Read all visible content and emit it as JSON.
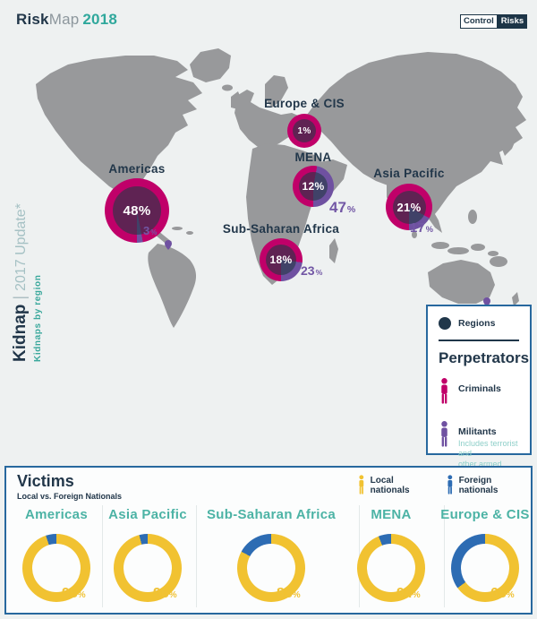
{
  "header": {
    "brand_bold": "Risk",
    "brand_light": "Map",
    "brand_year": "2018",
    "logo_left": "Control",
    "logo_right": "Risks"
  },
  "sidebar": {
    "title_bold": "Kidnap",
    "title_sep": "|",
    "title_rest": "2017 Update*",
    "subtitle": "Kidnaps by region"
  },
  "map": {
    "regions": [
      {
        "id": "americas",
        "label": "Americas",
        "share": "48%",
        "militants": "3"
      },
      {
        "id": "europe_cis",
        "label": "Europe & CIS",
        "share": "1%",
        "militants": null
      },
      {
        "id": "mena",
        "label": "MENA",
        "share": "12%",
        "militants": "47"
      },
      {
        "id": "asia_pacific",
        "label": "Asia Pacific",
        "share": "21%",
        "militants": "17"
      },
      {
        "id": "ssa",
        "label": "Sub-Saharan Africa",
        "share": "18%",
        "militants": "23"
      }
    ]
  },
  "legend": {
    "regions_label": "Regions",
    "title": "Perpetrators",
    "criminals_label": "Criminals",
    "militants_label": "Militants",
    "militants_note_1": "Includes terrorist and",
    "militants_note_2": "other armed groups"
  },
  "victims": {
    "title": "Victims",
    "subtitle": "Local vs. Foreign Nationals",
    "legend": [
      {
        "id": "local",
        "label": "Local nationals",
        "color": "#f1c231"
      },
      {
        "id": "foreign",
        "label": "Foreign nationals",
        "color": "#2d6cb3"
      }
    ],
    "charts": [
      {
        "label": "Americas",
        "local_pct": 95
      },
      {
        "label": "Asia Pacific",
        "local_pct": 96
      },
      {
        "label": "Sub-Saharan Africa",
        "local_pct": 83
      },
      {
        "label": "MENA",
        "local_pct": 94
      },
      {
        "label": "Europe & CIS",
        "local_pct": 65
      }
    ]
  },
  "colors": {
    "magenta": "#c00069",
    "purple": "#6f51a1",
    "purple_text": "#7257a5",
    "navy": "#22374a",
    "teal": "#2fa89c",
    "teal_light": "#4cb3a5",
    "yellow": "#f1c231",
    "blue": "#2d6cb3",
    "map_gray": "#98999b",
    "border_blue": "#27689e"
  },
  "chart_data": [
    {
      "type": "pie",
      "title": "Kidnaps by region (share of global kidnaps, with militant perpetrator share)",
      "series": [
        {
          "name": "Americas",
          "share_pct": 48,
          "militants_pct": 3
        },
        {
          "name": "Europe & CIS",
          "share_pct": 1,
          "militants_pct": null
        },
        {
          "name": "MENA",
          "share_pct": 12,
          "militants_pct": 47
        },
        {
          "name": "Asia Pacific",
          "share_pct": 21,
          "militants_pct": 17
        },
        {
          "name": "Sub-Saharan Africa",
          "share_pct": 18,
          "militants_pct": 23
        }
      ],
      "legend_position": "right",
      "notes": "Ring color: magenta = Criminals, purple = Militants"
    },
    {
      "type": "pie",
      "title": "Victims: Local vs. Foreign Nationals",
      "categories": [
        "Americas",
        "Asia Pacific",
        "Sub-Saharan Africa",
        "MENA",
        "Europe & CIS"
      ],
      "series": [
        {
          "name": "Local nationals",
          "values": [
            95,
            96,
            83,
            94,
            65
          ]
        },
        {
          "name": "Foreign nationals",
          "values": [
            5,
            4,
            17,
            6,
            35
          ]
        }
      ],
      "legend_position": "top-right"
    }
  ]
}
